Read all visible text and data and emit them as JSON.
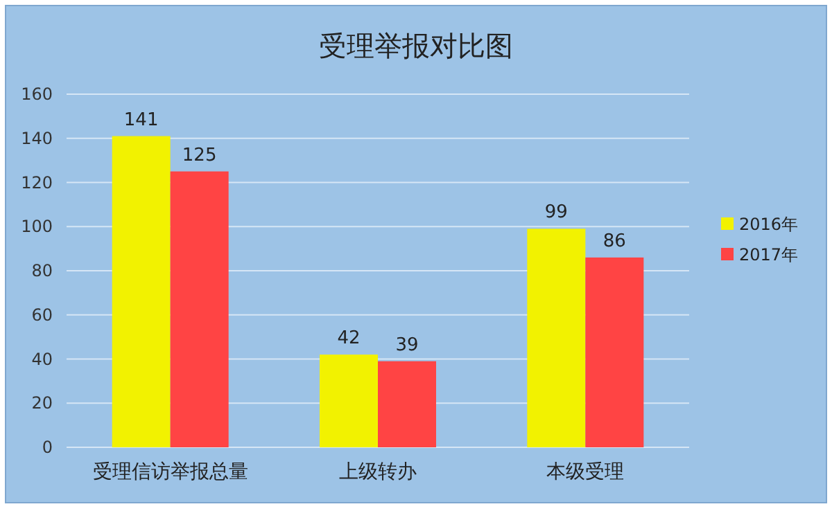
{
  "chart_data": {
    "type": "bar",
    "title": "受理举报对比图",
    "categories": [
      "受理信访举报总量",
      "上级转办",
      "本级受理"
    ],
    "series": [
      {
        "name": "2016年",
        "color": "#f2f200",
        "values": [
          141,
          42,
          99
        ]
      },
      {
        "name": "2017年",
        "color": "#ff4444",
        "values": [
          125,
          39,
          86
        ]
      }
    ],
    "ylim": [
      0,
      160
    ],
    "yticks": [
      0,
      20,
      40,
      60,
      80,
      100,
      120,
      140,
      160
    ],
    "grid": "y",
    "legend": "right",
    "data_labels": true
  }
}
